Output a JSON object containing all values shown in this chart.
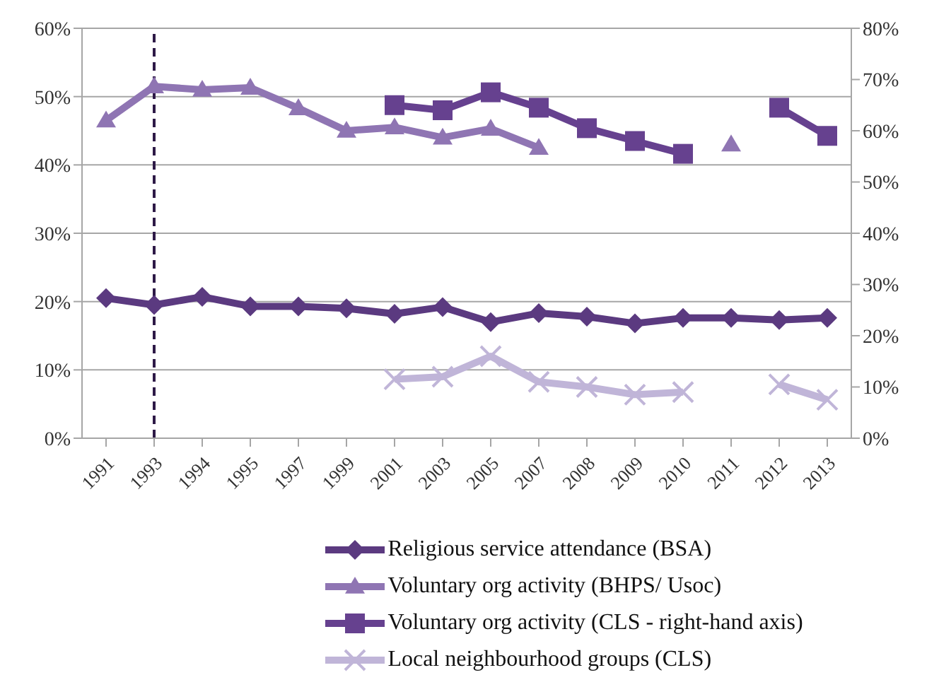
{
  "chart_data": {
    "type": "line",
    "categories": [
      "1991",
      "1993",
      "1994",
      "1995",
      "1997",
      "1999",
      "2001",
      "2003",
      "2005",
      "2007",
      "2008",
      "2009",
      "2010",
      "2011",
      "2012",
      "2013"
    ],
    "series": [
      {
        "name": "Religious service attendance (BSA)",
        "color": "#5b3a80",
        "marker": "diamond",
        "values": [
          20.5,
          19.5,
          20.7,
          19.3,
          19.3,
          19,
          18.2,
          19.2,
          17,
          18.3,
          17.8,
          16.8,
          17.6,
          17.6,
          17.3,
          17.6
        ]
      },
      {
        "name": "Voluntary org activity (BHPS/ Usoc)",
        "color": "#8f75b3",
        "marker": "triangle",
        "values": [
          46.5,
          51.5,
          51,
          51.3,
          48.3,
          45,
          45.5,
          44,
          45.3,
          42.5,
          null,
          null,
          null,
          43,
          null,
          null
        ]
      },
      {
        "name": "Voluntary org activity (CLS - right-hand axis)",
        "color": "#66418f",
        "marker": "square",
        "axis": "y2",
        "values": [
          null,
          null,
          null,
          null,
          null,
          null,
          65,
          64,
          67.5,
          64.5,
          60.5,
          58,
          55.5,
          null,
          64.5,
          59
        ]
      },
      {
        "name": "Local neighbourhood groups (CLS)",
        "color": "#c0b5d8",
        "marker": "cross",
        "axis": "y2",
        "values": [
          null,
          null,
          null,
          null,
          null,
          null,
          11.5,
          12,
          16,
          11,
          10,
          8.5,
          9,
          null,
          10.5,
          7.5
        ]
      }
    ],
    "ylim": [
      0,
      60
    ],
    "yticks": [
      {
        "value": 0,
        "label": "0%"
      },
      {
        "value": 10,
        "label": "10%"
      },
      {
        "value": 20,
        "label": "20%"
      },
      {
        "value": 30,
        "label": "30%"
      },
      {
        "value": 40,
        "label": "40%"
      },
      {
        "value": 50,
        "label": "50%"
      },
      {
        "value": 60,
        "label": "60%"
      }
    ],
    "y2lim": [
      0,
      80
    ],
    "y2ticks": [
      {
        "value": 0,
        "label": "0%"
      },
      {
        "value": 10,
        "label": "10%"
      },
      {
        "value": 20,
        "label": "20%"
      },
      {
        "value": 30,
        "label": "30%"
      },
      {
        "value": 40,
        "label": "40%"
      },
      {
        "value": 50,
        "label": "50%"
      },
      {
        "value": 60,
        "label": "60%"
      },
      {
        "value": 70,
        "label": "70%"
      },
      {
        "value": 80,
        "label": "80%"
      }
    ],
    "ref_lines": [
      {
        "axis": "x",
        "value": "1993",
        "color": "#2e1a47",
        "line_style": "dashed"
      }
    ],
    "grid": "y",
    "legend": "bottom"
  }
}
